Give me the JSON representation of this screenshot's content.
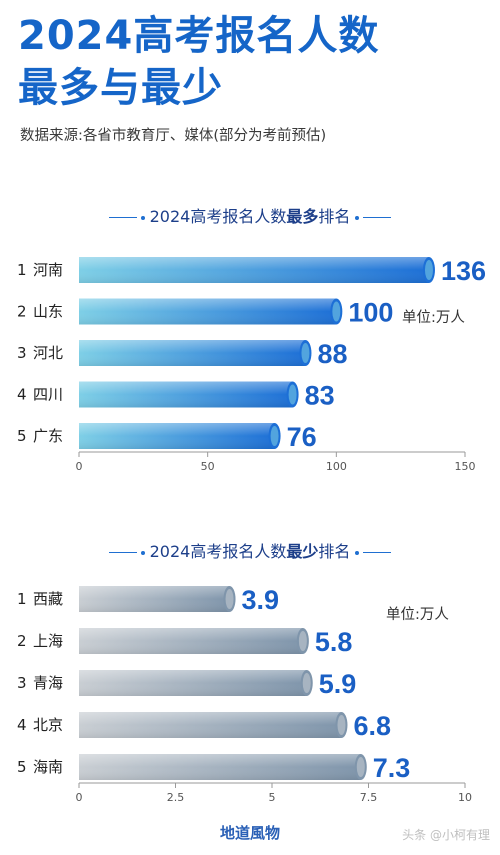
{
  "title_line1": "2024高考报名人数",
  "title_line2": "最多与最少",
  "source": "数据来源:各省市教育厅、媒体(部分为考前预估)",
  "footer": "地道風物",
  "watermark": "头条 @小柯有理",
  "chart_data": [
    {
      "type": "bar",
      "orientation": "horizontal",
      "title_prefix": "2024高考报名人数",
      "title_emphasis": "最多",
      "title_suffix": "排名",
      "unit": "单位:万人",
      "categories": [
        "河南",
        "山东",
        "河北",
        "四川",
        "广东"
      ],
      "ranks": [
        "1",
        "2",
        "3",
        "4",
        "5"
      ],
      "values": [
        136,
        100,
        88,
        83,
        76
      ],
      "xlim": [
        0,
        150
      ],
      "xticks": [
        0,
        50,
        100,
        150
      ],
      "colors": [
        "#7ecfe6",
        "#1d6fd6"
      ]
    },
    {
      "type": "bar",
      "orientation": "horizontal",
      "title_prefix": "2024高考报名人数",
      "title_emphasis": "最少",
      "title_suffix": "排名",
      "unit": "单位:万人",
      "categories": [
        "西藏",
        "上海",
        "青海",
        "北京",
        "海南"
      ],
      "ranks": [
        "1",
        "2",
        "3",
        "4",
        "5"
      ],
      "values": [
        3.9,
        5.8,
        5.9,
        6.8,
        7.3
      ],
      "xlim": [
        0,
        10
      ],
      "xticks": [
        0,
        2.5,
        5,
        7.5,
        10
      ],
      "colors": [
        "#c9ced3",
        "#7f95ab"
      ]
    }
  ]
}
